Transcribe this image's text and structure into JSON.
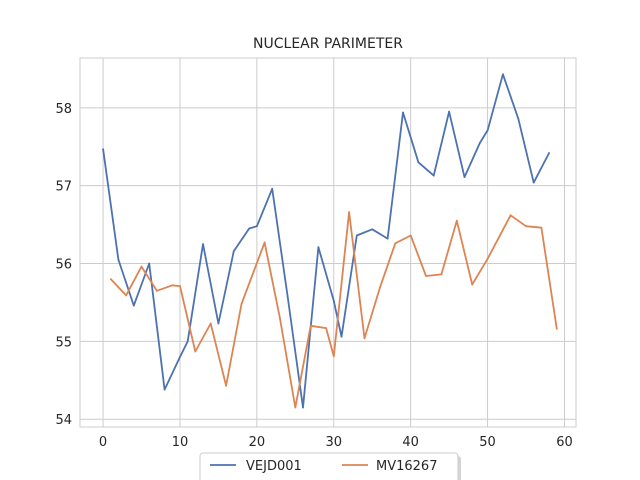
{
  "chart_data": {
    "type": "line",
    "title": "NUCLEAR PARIMETER",
    "xlabel": "",
    "ylabel": "",
    "xlim": [
      -3,
      61.5
    ],
    "ylim": [
      53.9,
      58.64
    ],
    "xticks": [
      0,
      10,
      20,
      30,
      40,
      50,
      60
    ],
    "yticks": [
      54,
      55,
      56,
      57,
      58
    ],
    "grid": true,
    "legend_position": "bottom-center",
    "series": [
      {
        "name": "VEJD001",
        "color": "#4c72b0",
        "x": [
          0,
          2,
          4,
          6,
          8,
          10,
          11,
          13,
          15,
          17,
          19,
          20,
          22,
          24,
          26,
          28,
          30,
          31,
          33,
          35,
          37,
          39,
          41,
          43,
          45,
          47,
          49,
          50,
          52,
          54,
          56,
          58
        ],
        "y": [
          57.47,
          56.05,
          55.46,
          56.0,
          54.38,
          54.8,
          55.0,
          56.25,
          55.23,
          56.16,
          56.45,
          56.48,
          56.96,
          55.58,
          54.15,
          56.21,
          55.52,
          55.06,
          56.36,
          56.44,
          56.32,
          57.94,
          57.3,
          57.13,
          57.95,
          57.11,
          57.55,
          57.71,
          58.43,
          57.86,
          57.04,
          57.42
        ]
      },
      {
        "name": "MV16267",
        "color": "#dd8452",
        "x": [
          1,
          3,
          5,
          7,
          9,
          10,
          12,
          14,
          16,
          18,
          21,
          23,
          25,
          27,
          29,
          30,
          32,
          34,
          36,
          38,
          40,
          42,
          44,
          46,
          48,
          50,
          53,
          55,
          57,
          59
        ],
        "y": [
          55.8,
          55.59,
          55.96,
          55.65,
          55.72,
          55.71,
          54.87,
          55.23,
          54.43,
          55.48,
          56.27,
          55.3,
          54.15,
          55.2,
          55.17,
          54.81,
          56.66,
          55.04,
          55.69,
          56.26,
          56.36,
          55.84,
          55.86,
          56.55,
          55.73,
          56.06,
          56.62,
          56.48,
          56.46,
          55.16
        ]
      }
    ]
  }
}
